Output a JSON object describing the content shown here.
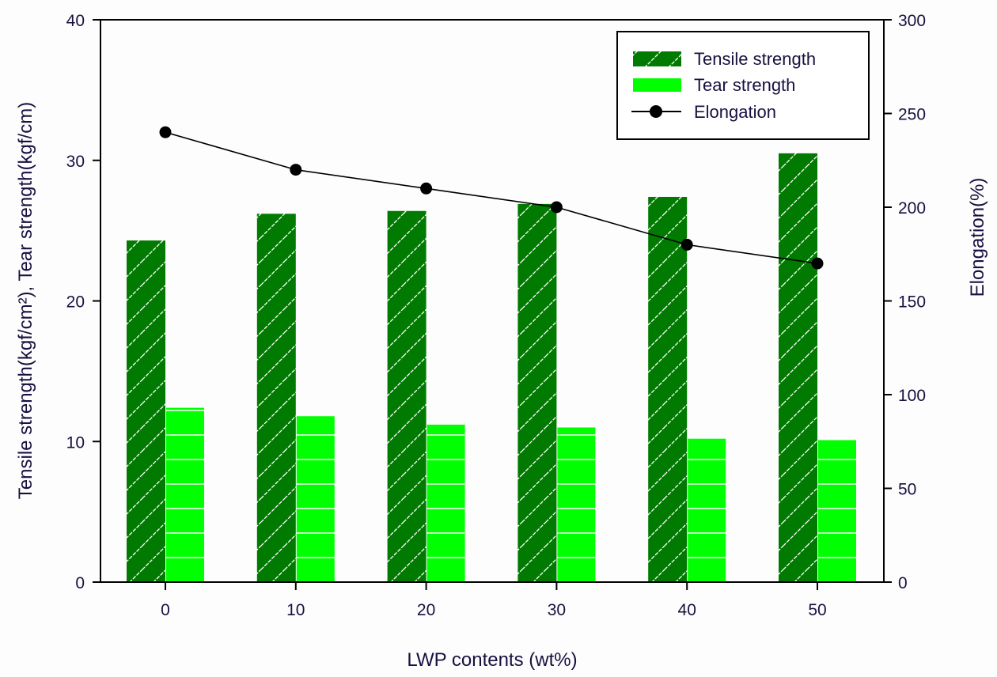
{
  "chart_data": {
    "type": "bar",
    "title": "",
    "categories": [
      "0",
      "10",
      "20",
      "30",
      "40",
      "50"
    ],
    "xlabel": "LWP contents (wt%)",
    "ylabel": "Tensile strength(kgf/cm²), Tear strength(kgf/cm)",
    "y2label": "Elongation(%)",
    "ylim": [
      0,
      40
    ],
    "y2lim": [
      0,
      300
    ],
    "yticks": [
      "0",
      "10",
      "20",
      "30",
      "40"
    ],
    "y2ticks": [
      "0",
      "50",
      "100",
      "150",
      "200",
      "250",
      "300"
    ],
    "grid": false,
    "legend_position": "top-right",
    "series": [
      {
        "name": "Tensile strength",
        "type": "bar",
        "axis": "left",
        "color": "#007a00",
        "pattern": "hatched",
        "values": [
          24.3,
          26.2,
          26.4,
          26.9,
          27.4,
          30.5
        ]
      },
      {
        "name": "Tear strength",
        "type": "bar",
        "axis": "left",
        "color": "#00ff00",
        "pattern": "solid",
        "values": [
          12.4,
          11.8,
          11.2,
          11.0,
          10.2,
          10.1
        ]
      },
      {
        "name": "Elongation",
        "type": "line",
        "axis": "right",
        "color": "#000000",
        "marker": "circle",
        "values": [
          240,
          220,
          210,
          200,
          180,
          170
        ]
      }
    ]
  }
}
